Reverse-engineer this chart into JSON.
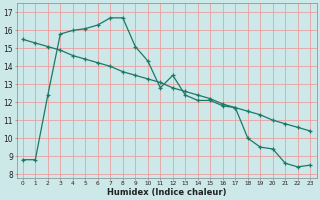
{
  "line1_x": [
    0,
    1,
    2,
    3,
    4,
    5,
    6,
    7,
    8,
    9,
    10,
    11,
    12,
    13,
    14,
    15,
    16,
    17,
    18,
    19,
    20,
    21,
    22,
    23
  ],
  "line1_y": [
    8.8,
    8.8,
    12.4,
    15.8,
    16.0,
    16.1,
    16.3,
    16.7,
    16.7,
    15.1,
    14.3,
    12.8,
    13.5,
    12.4,
    12.1,
    12.1,
    11.8,
    11.7,
    10.0,
    9.5,
    9.4,
    8.6,
    8.4,
    8.5
  ],
  "line2_x": [
    0,
    1,
    2,
    3,
    4,
    5,
    6,
    7,
    8,
    9,
    10,
    11,
    12,
    13,
    14,
    15,
    16,
    17,
    18,
    19,
    20,
    21,
    22,
    23
  ],
  "line2_y": [
    15.5,
    15.3,
    15.1,
    14.9,
    14.6,
    14.4,
    14.2,
    14.0,
    13.7,
    13.5,
    13.3,
    13.1,
    12.8,
    12.6,
    12.4,
    12.2,
    11.9,
    11.7,
    11.5,
    11.3,
    11.0,
    10.8,
    10.6,
    10.4
  ],
  "line_color": "#1a7a6a",
  "bg_color": "#cce8e8",
  "grid_color": "#e8a0a0",
  "xlabel": "Humidex (Indice chaleur)",
  "ylabel_ticks": [
    8,
    9,
    10,
    11,
    12,
    13,
    14,
    15,
    16,
    17
  ],
  "xtick_labels": [
    "0",
    "1",
    "2",
    "3",
    "4",
    "5",
    "6",
    "7",
    "8",
    "9",
    "10",
    "11",
    "12",
    "13",
    "14",
    "15",
    "16",
    "17",
    "18",
    "19",
    "20",
    "21",
    "22",
    "23"
  ],
  "xlim": [
    -0.5,
    23.5
  ],
  "ylim": [
    7.8,
    17.5
  ]
}
